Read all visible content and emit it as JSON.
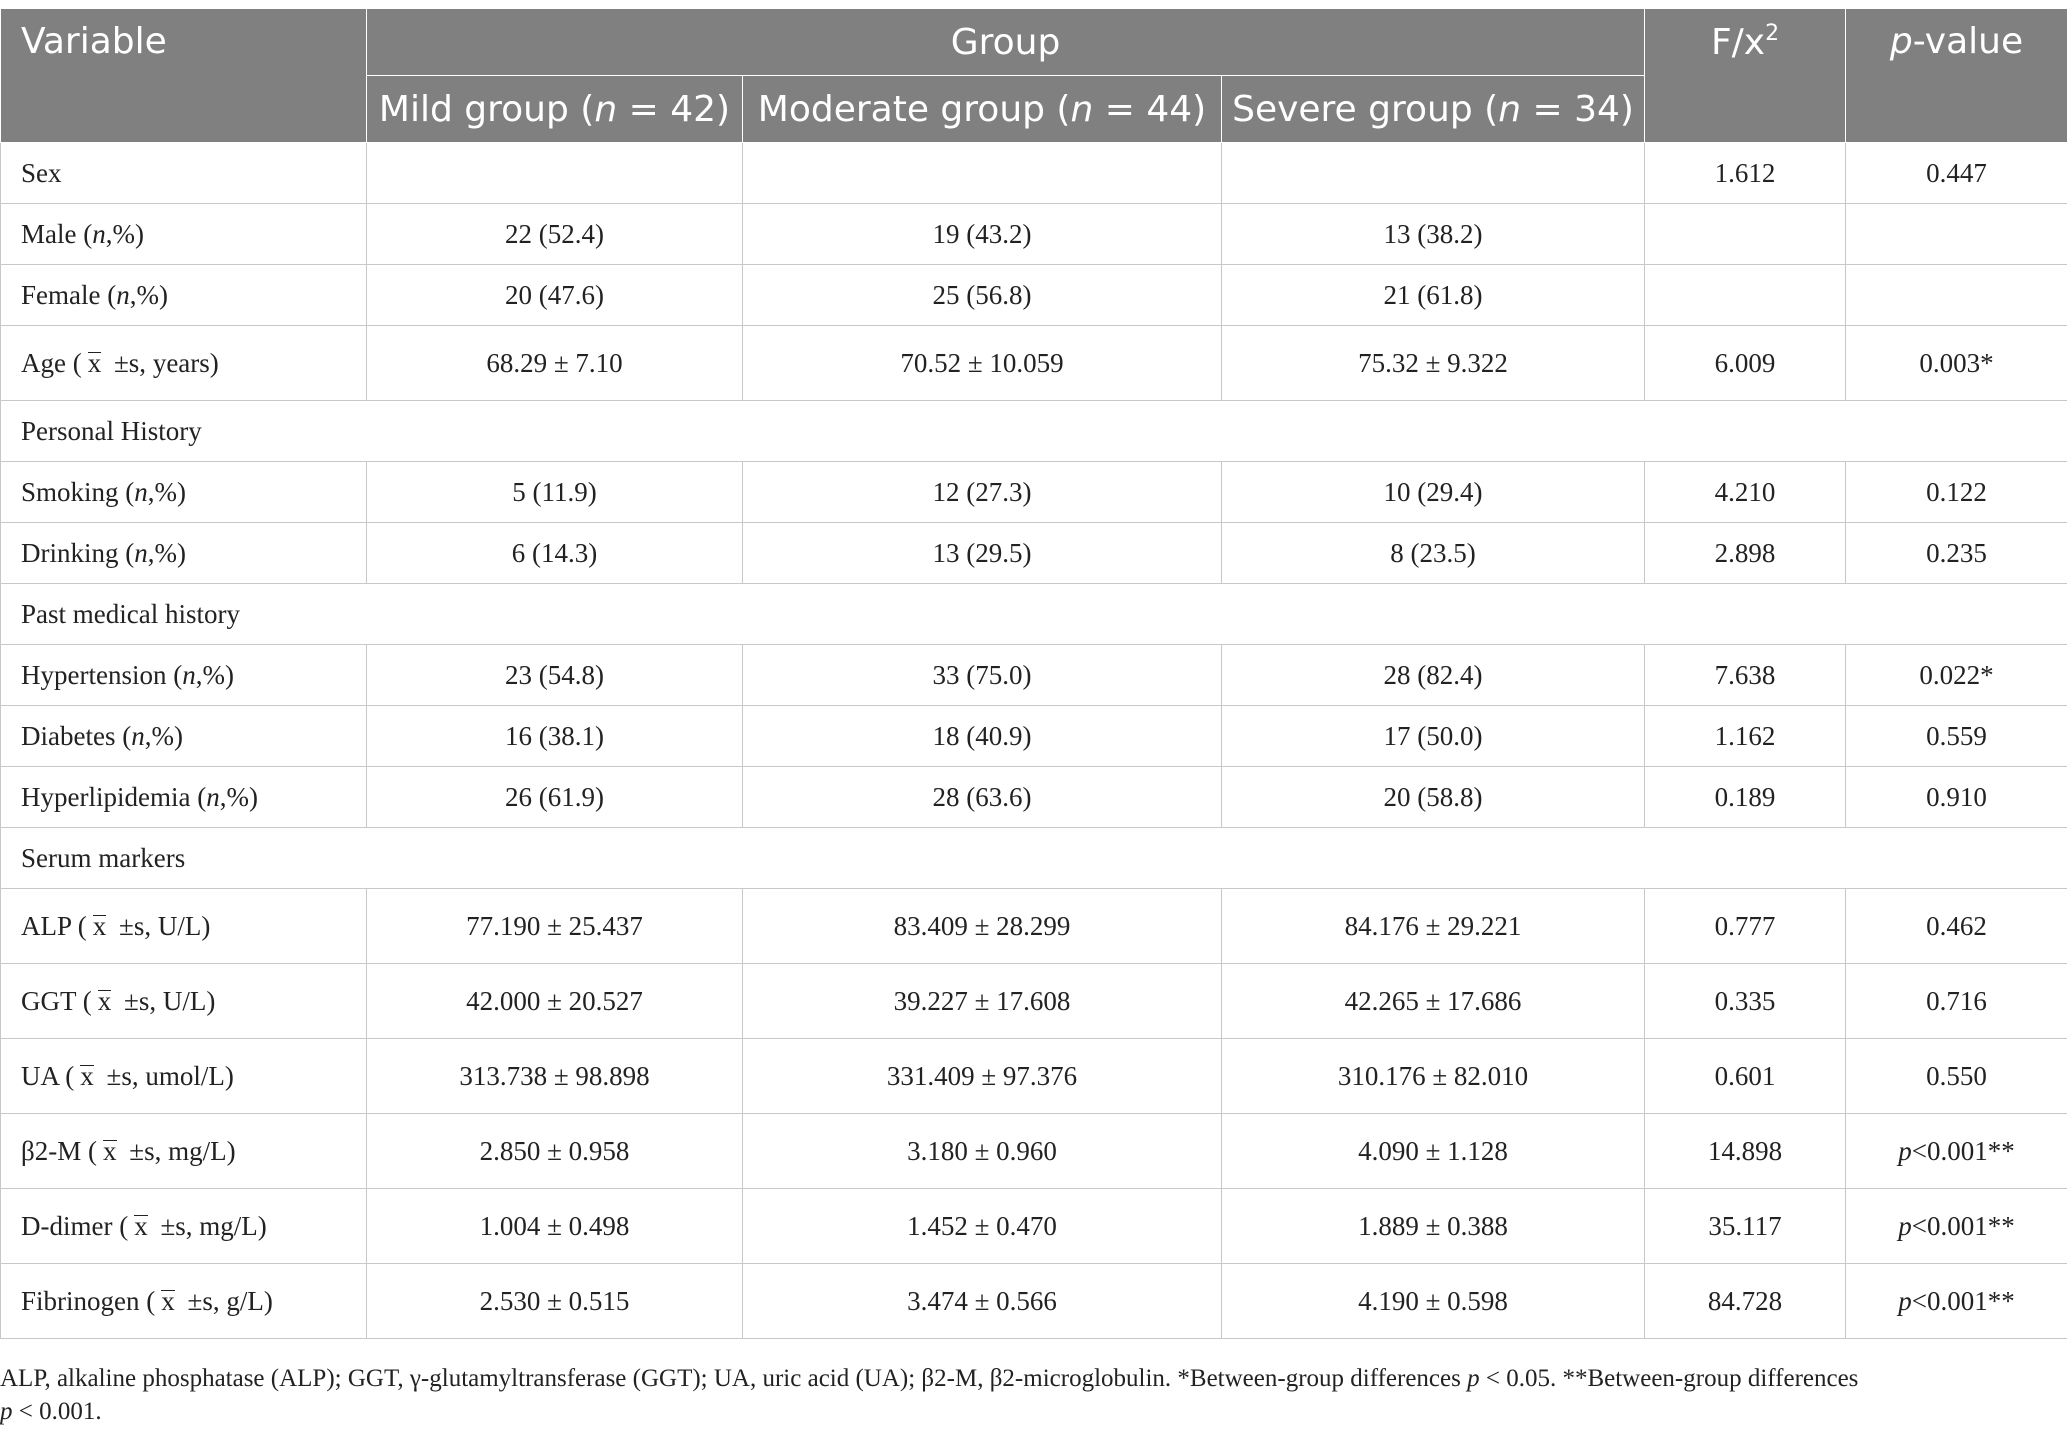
{
  "header": {
    "variable": "Variable",
    "group": "Group",
    "mild_prefix": "Mild group (",
    "moderate_prefix": "Moderate group (",
    "severe_prefix": "Severe group (",
    "n_letter": "n",
    "mild_n": " = 42)",
    "moderate_n": " = 44)",
    "severe_n": " = 34)",
    "fx_label": "F/x",
    "fx_sup": "2",
    "p_letter": "p",
    "p_suffix": "-value"
  },
  "marks": {
    "n": "n",
    "pct": ",%)",
    "open": " (",
    "xbar": "x",
    "pm_s": " ±s, "
  },
  "rows": {
    "sex": {
      "label": "Sex",
      "f": "1.612",
      "p": "0.447"
    },
    "male": {
      "label": "Male",
      "mild": "22 (52.4)",
      "moderate": "19 (43.2)",
      "severe": "13 (38.2)"
    },
    "female": {
      "label": "Female",
      "mild": "20 (47.6)",
      "moderate": "25 (56.8)",
      "severe": "21 (61.8)"
    },
    "age": {
      "label": "Age",
      "unit": "years)",
      "mild": "68.29 ± 7.10",
      "moderate": "70.52 ± 10.059",
      "severe": "75.32 ± 9.322",
      "f": "6.009",
      "p": "0.003*"
    },
    "personal": {
      "label": "Personal History"
    },
    "smoking": {
      "label": "Smoking",
      "mild": "5 (11.9)",
      "moderate": "12 (27.3)",
      "severe": "10 (29.4)",
      "f": "4.210",
      "p": "0.122"
    },
    "drinking": {
      "label": "Drinking",
      "mild": "6 (14.3)",
      "moderate": "13 (29.5)",
      "severe": "8 (23.5)",
      "f": "2.898",
      "p": "0.235"
    },
    "past": {
      "label": "Past medical history"
    },
    "hypertension": {
      "label": "Hypertension",
      "mild": "23 (54.8)",
      "moderate": "33 (75.0)",
      "severe": "28 (82.4)",
      "f": "7.638",
      "p": "0.022*"
    },
    "diabetes": {
      "label": "Diabetes",
      "mild": "16 (38.1)",
      "moderate": "18 (40.9)",
      "severe": "17 (50.0)",
      "f": "1.162",
      "p": "0.559"
    },
    "hyperlipidemia": {
      "label": "Hyperlipidemia",
      "mild": "26 (61.9)",
      "moderate": "28 (63.6)",
      "severe": "20 (58.8)",
      "f": "0.189",
      "p": "0.910"
    },
    "serum": {
      "label": "Serum markers"
    },
    "alp": {
      "label": "ALP",
      "unit": "U/L)",
      "mild": "77.190 ± 25.437",
      "moderate": "83.409 ± 28.299",
      "severe": "84.176 ± 29.221",
      "f": "0.777",
      "p": "0.462"
    },
    "ggt": {
      "label": "GGT",
      "unit": "U/L)",
      "mild": "42.000 ± 20.527",
      "moderate": "39.227 ± 17.608",
      "severe": "42.265 ± 17.686",
      "f": "0.335",
      "p": "0.716"
    },
    "ua": {
      "label": "UA",
      "unit": "umol/L)",
      "mild": "313.738 ± 98.898",
      "moderate": "331.409 ± 97.376",
      "severe": "310.176 ± 82.010",
      "f": "0.601",
      "p": "0.550"
    },
    "b2m": {
      "label": "β2-M",
      "unit": "mg/L)",
      "mild": "2.850 ± 0.958",
      "moderate": "3.180 ± 0.960",
      "severe": "4.090 ± 1.128",
      "f": "14.898",
      "p_letter": "p",
      "p_rest": "<0.001**"
    },
    "ddimer": {
      "label": "D-dimer",
      "unit": "mg/L)",
      "mild": "1.004 ± 0.498",
      "moderate": "1.452 ± 0.470",
      "severe": "1.889 ± 0.388",
      "f": "35.117",
      "p_letter": "p",
      "p_rest": "<0.001**"
    },
    "fibrinogen": {
      "label": "Fibrinogen",
      "unit": "g/L)",
      "mild": "2.530 ± 0.515",
      "moderate": "3.474 ± 0.566",
      "severe": "4.190 ± 0.598",
      "f": "84.728",
      "p_letter": "p",
      "p_rest": "<0.001**"
    }
  },
  "footnote": {
    "text1": "ALP, alkaline phosphatase (ALP); GGT, γ-glutamyltransferase (GGT); UA, uric acid (UA); β2-M, β2-microglobulin. *Between-group differences ",
    "p1": "p",
    "text2": " < 0.05. **Between-group differences",
    "p2": "p",
    "text3": " < 0.001."
  }
}
